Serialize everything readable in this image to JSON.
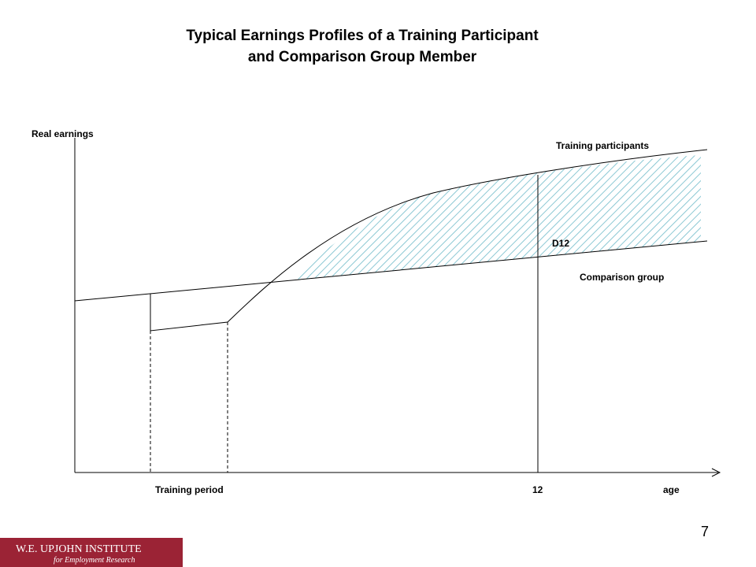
{
  "header": {
    "title_lines": [
      "Typical Earnings Profiles of a Training Participant",
      "and Comparison Group Member"
    ]
  },
  "diagram": {
    "y_axis_label": "Real earnings",
    "x_axis_label": "age",
    "curve_labels": {
      "training": "Training participants",
      "comparison": "Comparison group",
      "difference": "D12"
    },
    "x_markers": {
      "training_period": "Training period",
      "age_point": "12"
    }
  },
  "footer": {
    "page_number": "7",
    "logo_main": "W.E. UPJOHN INSTITUTE",
    "logo_sub": "for Employment Research"
  }
}
